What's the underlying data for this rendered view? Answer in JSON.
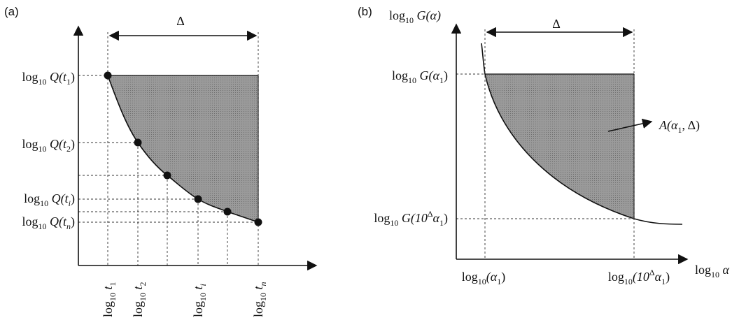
{
  "panel_a": {
    "panel_label": "(a)",
    "delta": "Δ",
    "y_labels": [
      {
        "pre": "log",
        "s": "10",
        "main": " Q(t",
        "i": "1",
        "end": ")"
      },
      {
        "pre": "log",
        "s": "10",
        "main": " Q(t",
        "i": "2",
        "end": ")"
      },
      {
        "pre": "log",
        "s": "10",
        "main": " Q(t",
        "i": "i",
        "end": ")"
      },
      {
        "pre": "log",
        "s": "10",
        "main": " Q(t",
        "i": "n",
        "end": ")"
      }
    ],
    "x_labels": [
      {
        "pre": "log",
        "s": "10",
        "main": " t",
        "i": "1"
      },
      {
        "pre": "log",
        "s": "10",
        "main": " t",
        "i": "2"
      },
      {
        "pre": "log",
        "s": "10",
        "main": " t",
        "i": "i"
      },
      {
        "pre": "log",
        "s": "10",
        "main": " t",
        "i": "n"
      }
    ]
  },
  "panel_b": {
    "panel_label": "(b)",
    "delta": "Δ",
    "y_axis_label": {
      "pre": "log",
      "s": "10",
      "main": " G(α)"
    },
    "y_labels": [
      {
        "pre": "log",
        "s": "10",
        "main": " G(α",
        "i": "1",
        "end": ")"
      },
      {
        "pre": "log",
        "s": "10",
        "main": " G(10",
        "sup": "Δ",
        "mid": "α",
        "i": "1",
        "end": ")"
      }
    ],
    "x_labels": [
      {
        "pre": "log",
        "s": "10",
        "main": "(α",
        "i": "1",
        "end": ")"
      },
      {
        "pre": "log",
        "s": "10",
        "main": "(10",
        "sup": "Δ",
        "mid": "α",
        "i": "1",
        "end": ")"
      }
    ],
    "x_axis_label": {
      "pre": "log",
      "s": "10",
      "main": " α"
    },
    "area_label": {
      "main": "A(α",
      "i": "1",
      "end": ", Δ)"
    }
  }
}
